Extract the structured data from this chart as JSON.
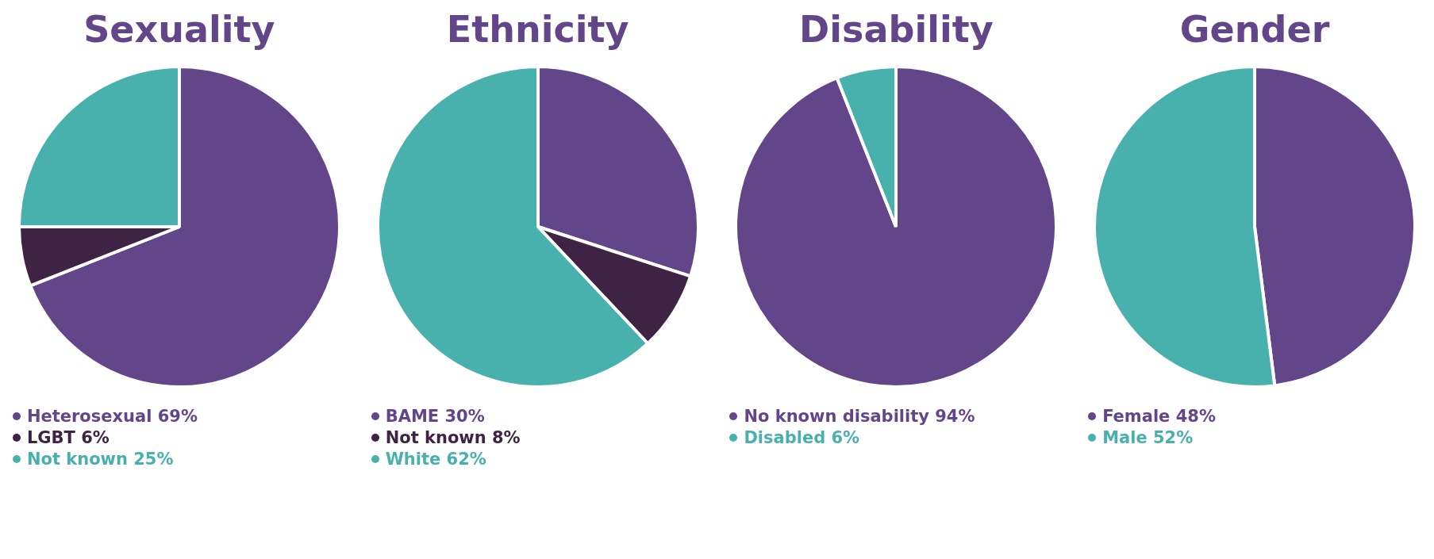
{
  "chart_data": [
    {
      "type": "pie",
      "title": "Sexuality",
      "categories": [
        "Heterosexual",
        "LGBT",
        "Not known"
      ],
      "values": [
        69,
        6,
        25
      ],
      "value_labels": [
        "69%",
        "6%",
        "25%"
      ],
      "colors": [
        "#63458a",
        "#3f2344",
        "#48b1ad"
      ],
      "legend": "bottom"
    },
    {
      "type": "pie",
      "title": "Ethnicity",
      "categories": [
        "BAME",
        "Not known",
        "White"
      ],
      "values": [
        30,
        8,
        62
      ],
      "value_labels": [
        "30%",
        "8%",
        "62%"
      ],
      "colors": [
        "#63458a",
        "#3f2344",
        "#48b1ad"
      ],
      "legend": "bottom"
    },
    {
      "type": "pie",
      "title": "Disability",
      "categories": [
        "No known disability",
        "Disabled"
      ],
      "values": [
        94,
        6
      ],
      "value_labels": [
        "94%",
        "6%"
      ],
      "colors": [
        "#63458a",
        "#48b1ad"
      ],
      "legend": "bottom"
    },
    {
      "type": "pie",
      "title": "Gender",
      "categories": [
        "Female",
        "Male"
      ],
      "values": [
        48,
        52
      ],
      "value_labels": [
        "48%",
        "52%"
      ],
      "colors": [
        "#63458a",
        "#48b1ad"
      ],
      "legend": "bottom"
    }
  ]
}
